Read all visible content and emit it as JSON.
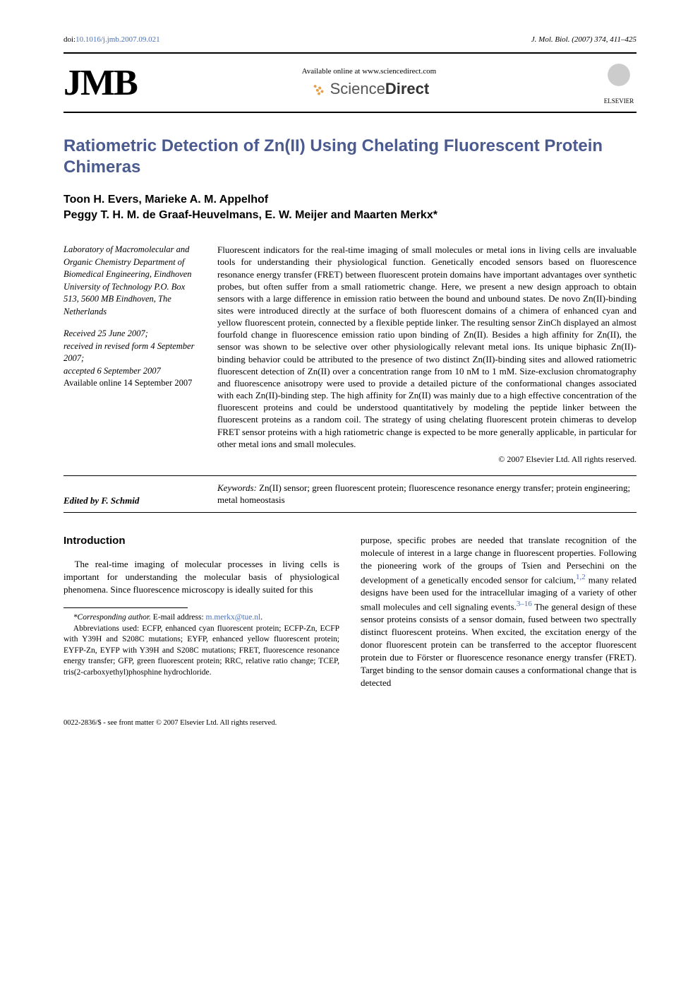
{
  "doi": "doi:10.1016/j.jmb.2007.09.021",
  "doi_prefix": "doi:",
  "doi_link_text": "10.1016/j.jmb.2007.09.021",
  "journal_ref": "J. Mol. Biol. (2007) 374, 411–425",
  "header": {
    "jmb": "JMB",
    "available_online": "Available online at www.sciencedirect.com",
    "sciencedirect": "ScienceDirect",
    "elsevier": "ELSEVIER"
  },
  "title": "Ratiometric Detection of Zn(II) Using Chelating Fluorescent Protein Chimeras",
  "authors_line1": "Toon H. Evers, Marieke A. M. Appelhof",
  "authors_line2": "Peggy T. H. M. de Graaf-Heuvelmans, E. W. Meijer and Maarten Merkx*",
  "affiliation": "Laboratory of Macromolecular and Organic Chemistry Department of Biomedical Engineering, Eindhoven University of Technology P.O. Box 513, 5600 MB Eindhoven, The Netherlands",
  "history": {
    "received": "Received 25 June 2007;",
    "revised": "received in revised form 4 September 2007;",
    "accepted": "accepted 6 September 2007",
    "online": "Available online 14 September 2007"
  },
  "abstract": "Fluorescent indicators for the real-time imaging of small molecules or metal ions in living cells are invaluable tools for understanding their physiological function. Genetically encoded sensors based on fluorescence resonance energy transfer (FRET) between fluorescent protein domains have important advantages over synthetic probes, but often suffer from a small ratiometric change. Here, we present a new design approach to obtain sensors with a large difference in emission ratio between the bound and unbound states. De novo Zn(II)-binding sites were introduced directly at the surface of both fluorescent domains of a chimera of enhanced cyan and yellow fluorescent protein, connected by a flexible peptide linker. The resulting sensor ZinCh displayed an almost fourfold change in fluorescence emission ratio upon binding of Zn(II). Besides a high affinity for Zn(II), the sensor was shown to be selective over other physiologically relevant metal ions. Its unique biphasic Zn(II)-binding behavior could be attributed to the presence of two distinct Zn(II)-binding sites and allowed ratiometric fluorescent detection of Zn(II) over a concentration range from 10 nM to 1 mM. Size-exclusion chromatography and fluorescence anisotropy were used to provide a detailed picture of the conformational changes associated with each Zn(II)-binding step. The high affinity for Zn(II) was mainly due to a high effective concentration of the fluorescent proteins and could be understood quantitatively by modeling the peptide linker between the fluorescent proteins as a random coil. The strategy of using chelating fluorescent protein chimeras to develop FRET sensor proteins with a high ratiometric change is expected to be more generally applicable, in particular for other metal ions and small molecules.",
  "copyright": "© 2007 Elsevier Ltd. All rights reserved.",
  "keywords_label": "Keywords:",
  "keywords": " Zn(II) sensor; green fluorescent protein; fluorescence resonance energy transfer; protein engineering; metal homeostasis",
  "edited_by": "Edited by F. Schmid",
  "section_head": "Introduction",
  "intro_para": "The real-time imaging of molecular processes in living cells is important for understanding the molecular basis of physiological phenomena. Since fluorescence microscopy is ideally suited for this",
  "footnote_corr_label": "*Corresponding author.",
  "footnote_email_label": " E-mail address: ",
  "footnote_email": "m.merkx@tue.nl",
  "footnote_abbrev": "Abbreviations used: ECFP, enhanced cyan fluorescent protein; ECFP-Zn, ECFP with Y39H and S208C mutations; EYFP, enhanced yellow fluorescent protein; EYFP-Zn, EYFP with Y39H and S208C mutations; FRET, fluorescence resonance energy transfer; GFP, green fluorescent protein; RRC, relative ratio change; TCEP, tris(2-carboxyethyl)phosphine hydrochloride.",
  "col2_para_a": "purpose, specific probes are needed that translate recognition of the molecule of interest in a large change in fluorescent properties. Following the pioneering work of the groups of Tsien and Persechini on the development of a genetically encoded sensor for calcium,",
  "ref12": "1,2",
  "col2_para_b": " many related designs have been used for the intracellular imaging of a variety of other small molecules and cell signaling events.",
  "ref316": "3–16",
  "col2_para_c": " The general design of these sensor proteins consists of a sensor domain, fused between two spectrally distinct fluorescent proteins. When excited, the excitation energy of the donor fluorescent protein can be transferred to the acceptor fluorescent protein due to Förster or fluorescence resonance energy transfer (FRET). Target binding to the sensor domain causes a conformational change that is detected",
  "page_footer": "0022-2836/$ - see front matter © 2007 Elsevier Ltd. All rights reserved.",
  "colors": {
    "title": "#4b5b8f",
    "link": "#4a6fb3",
    "text": "#000000",
    "background": "#ffffff"
  }
}
